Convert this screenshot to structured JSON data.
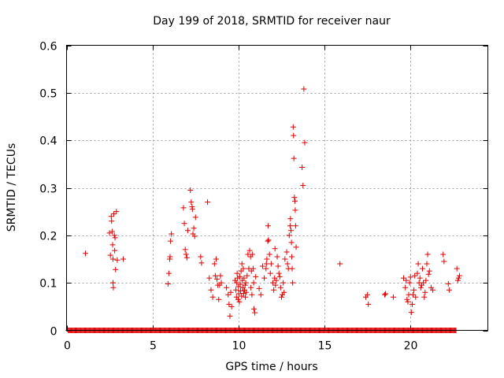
{
  "chart_data": {
    "type": "scatter",
    "title": "Day 199 of 2018, SRMTID for receiver naur",
    "xlabel": "GPS time / hours",
    "ylabel": "SRMTID / TECUs",
    "xlim": [
      0,
      24.5
    ],
    "ylim": [
      0,
      0.6
    ],
    "xticks": [
      0,
      5,
      10,
      15,
      20
    ],
    "xtick_labels": [
      "0",
      "5",
      "10",
      "15",
      "20"
    ],
    "yticks": [
      0,
      0.1,
      0.2,
      0.3,
      0.4,
      0.5,
      0.6
    ],
    "ytick_labels": [
      "0",
      "0.1",
      "0.2",
      "0.3",
      "0.4",
      "0.5",
      "0.6"
    ],
    "grid": true,
    "marker": "+",
    "color": "#e00000",
    "zero_baseline_range": [
      0.1,
      22.7
    ],
    "series": [
      {
        "name": "SRMTID",
        "points": [
          [
            1.1,
            0.162
          ],
          [
            2.5,
            0.205
          ],
          [
            2.55,
            0.158
          ],
          [
            2.6,
            0.24
          ],
          [
            2.62,
            0.23
          ],
          [
            2.65,
            0.208
          ],
          [
            2.68,
            0.18
          ],
          [
            2.7,
            0.15
          ],
          [
            2.7,
            0.1
          ],
          [
            2.72,
            0.09
          ],
          [
            2.75,
            0.245
          ],
          [
            2.78,
            0.2
          ],
          [
            2.8,
            0.168
          ],
          [
            2.82,
            0.195
          ],
          [
            2.85,
            0.128
          ],
          [
            2.9,
            0.25
          ],
          [
            2.95,
            0.148
          ],
          [
            3.3,
            0.15
          ],
          [
            5.9,
            0.098
          ],
          [
            5.95,
            0.12
          ],
          [
            6.0,
            0.15
          ],
          [
            6.02,
            0.155
          ],
          [
            6.05,
            0.188
          ],
          [
            6.1,
            0.203
          ],
          [
            6.8,
            0.258
          ],
          [
            6.85,
            0.225
          ],
          [
            6.9,
            0.17
          ],
          [
            6.95,
            0.16
          ],
          [
            7.0,
            0.153
          ],
          [
            7.05,
            0.21
          ],
          [
            7.2,
            0.295
          ],
          [
            7.25,
            0.27
          ],
          [
            7.3,
            0.26
          ],
          [
            7.32,
            0.255
          ],
          [
            7.35,
            0.203
          ],
          [
            7.4,
            0.215
          ],
          [
            7.45,
            0.198
          ],
          [
            7.5,
            0.238
          ],
          [
            7.8,
            0.155
          ],
          [
            7.85,
            0.142
          ],
          [
            8.2,
            0.27
          ],
          [
            8.3,
            0.11
          ],
          [
            8.4,
            0.085
          ],
          [
            8.5,
            0.07
          ],
          [
            8.6,
            0.14
          ],
          [
            8.65,
            0.115
          ],
          [
            8.7,
            0.15
          ],
          [
            8.75,
            0.108
          ],
          [
            8.8,
            0.095
          ],
          [
            8.85,
            0.065
          ],
          [
            8.9,
            0.095
          ],
          [
            8.95,
            0.115
          ],
          [
            9.0,
            0.1
          ],
          [
            9.3,
            0.09
          ],
          [
            9.4,
            0.075
          ],
          [
            9.45,
            0.055
          ],
          [
            9.5,
            0.03
          ],
          [
            9.55,
            0.08
          ],
          [
            9.6,
            0.05
          ],
          [
            9.8,
            0.105
          ],
          [
            9.85,
            0.085
          ],
          [
            9.88,
            0.07
          ],
          [
            9.9,
            0.1
          ],
          [
            9.92,
            0.12
          ],
          [
            9.95,
            0.11
          ],
          [
            9.98,
            0.065
          ],
          [
            10.0,
            0.092
          ],
          [
            10.02,
            0.077
          ],
          [
            10.05,
            0.06
          ],
          [
            10.08,
            0.113
          ],
          [
            10.1,
            0.097
          ],
          [
            10.12,
            0.083
          ],
          [
            10.15,
            0.125
          ],
          [
            10.18,
            0.072
          ],
          [
            10.2,
            0.14
          ],
          [
            10.22,
            0.105
          ],
          [
            10.25,
            0.09
          ],
          [
            10.28,
            0.13
          ],
          [
            10.3,
            0.078
          ],
          [
            10.32,
            0.11
          ],
          [
            10.35,
            0.085
          ],
          [
            10.38,
            0.095
          ],
          [
            10.4,
            0.07
          ],
          [
            10.42,
            0.1
          ],
          [
            10.45,
            0.08
          ],
          [
            10.5,
            0.115
          ],
          [
            10.55,
            0.16
          ],
          [
            10.6,
            0.13
          ],
          [
            10.65,
            0.168
          ],
          [
            10.7,
            0.155
          ],
          [
            10.72,
            0.09
          ],
          [
            10.75,
            0.125
          ],
          [
            10.78,
            0.075
          ],
          [
            10.8,
            0.16
          ],
          [
            10.85,
            0.13
          ],
          [
            10.88,
            0.1
          ],
          [
            10.9,
            0.045
          ],
          [
            10.95,
            0.037
          ],
          [
            11.0,
            0.113
          ],
          [
            11.2,
            0.088
          ],
          [
            11.3,
            0.075
          ],
          [
            11.4,
            0.135
          ],
          [
            11.5,
            0.11
          ],
          [
            11.6,
            0.13
          ],
          [
            11.62,
            0.14
          ],
          [
            11.65,
            0.15
          ],
          [
            11.7,
            0.188
          ],
          [
            11.72,
            0.22
          ],
          [
            11.75,
            0.19
          ],
          [
            11.8,
            0.16
          ],
          [
            11.85,
            0.12
          ],
          [
            11.9,
            0.14
          ],
          [
            12.0,
            0.1
          ],
          [
            12.05,
            0.085
          ],
          [
            12.1,
            0.11
          ],
          [
            12.12,
            0.172
          ],
          [
            12.15,
            0.095
          ],
          [
            12.2,
            0.105
          ],
          [
            12.25,
            0.155
          ],
          [
            12.3,
            0.135
          ],
          [
            12.35,
            0.12
          ],
          [
            12.4,
            0.113
          ],
          [
            12.45,
            0.09
          ],
          [
            12.5,
            0.07
          ],
          [
            12.55,
            0.075
          ],
          [
            12.6,
            0.1
          ],
          [
            12.65,
            0.08
          ],
          [
            12.7,
            0.15
          ],
          [
            12.8,
            0.165
          ],
          [
            12.85,
            0.14
          ],
          [
            12.9,
            0.13
          ],
          [
            12.95,
            0.2
          ],
          [
            13.0,
            0.22
          ],
          [
            13.02,
            0.235
          ],
          [
            13.05,
            0.21
          ],
          [
            13.08,
            0.185
          ],
          [
            13.1,
            0.155
          ],
          [
            13.12,
            0.13
          ],
          [
            13.15,
            0.1
          ],
          [
            13.18,
            0.428
          ],
          [
            13.2,
            0.41
          ],
          [
            13.22,
            0.362
          ],
          [
            13.25,
            0.28
          ],
          [
            13.28,
            0.272
          ],
          [
            13.3,
            0.253
          ],
          [
            13.32,
            0.22
          ],
          [
            13.35,
            0.175
          ],
          [
            13.7,
            0.343
          ],
          [
            13.75,
            0.305
          ],
          [
            13.8,
            0.508
          ],
          [
            13.85,
            0.395
          ],
          [
            15.9,
            0.14
          ],
          [
            17.4,
            0.07
          ],
          [
            17.5,
            0.075
          ],
          [
            17.55,
            0.055
          ],
          [
            18.5,
            0.075
          ],
          [
            18.55,
            0.077
          ],
          [
            19.0,
            0.07
          ],
          [
            19.6,
            0.11
          ],
          [
            19.7,
            0.09
          ],
          [
            19.75,
            0.105
          ],
          [
            19.8,
            0.065
          ],
          [
            19.85,
            0.06
          ],
          [
            19.9,
            0.075
          ],
          [
            19.95,
            0.1
          ],
          [
            20.0,
            0.112
          ],
          [
            20.05,
            0.038
          ],
          [
            20.1,
            0.055
          ],
          [
            20.15,
            0.075
          ],
          [
            20.2,
            0.085
          ],
          [
            20.25,
            0.115
          ],
          [
            20.3,
            0.07
          ],
          [
            20.4,
            0.12
          ],
          [
            20.45,
            0.14
          ],
          [
            20.5,
            0.1
          ],
          [
            20.55,
            0.11
          ],
          [
            20.6,
            0.09
          ],
          [
            20.65,
            0.095
          ],
          [
            20.7,
            0.13
          ],
          [
            20.75,
            0.1
          ],
          [
            20.8,
            0.07
          ],
          [
            20.85,
            0.08
          ],
          [
            20.9,
            0.105
          ],
          [
            20.95,
            0.14
          ],
          [
            21.0,
            0.16
          ],
          [
            21.05,
            0.118
          ],
          [
            21.1,
            0.125
          ],
          [
            21.2,
            0.09
          ],
          [
            21.3,
            0.085
          ],
          [
            21.9,
            0.16
          ],
          [
            21.95,
            0.145
          ],
          [
            22.2,
            0.098
          ],
          [
            22.25,
            0.085
          ],
          [
            22.7,
            0.13
          ],
          [
            22.75,
            0.105
          ],
          [
            22.8,
            0.11
          ],
          [
            22.85,
            0.115
          ]
        ]
      }
    ]
  }
}
